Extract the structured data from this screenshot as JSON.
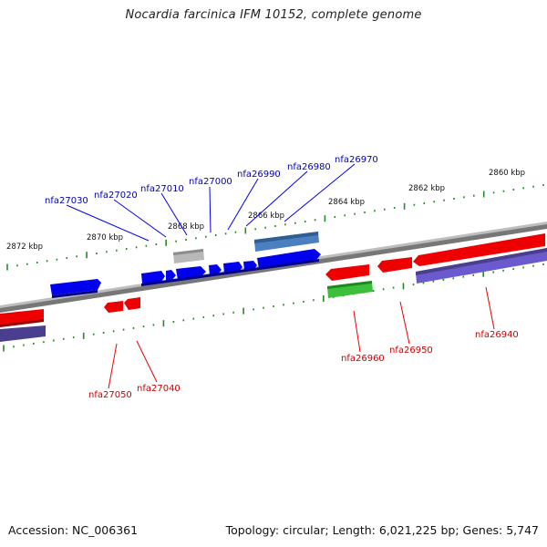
{
  "title": "Nocardia farcinica IFM 10152, complete genome",
  "footer": {
    "accession": "Accession: NC_006361",
    "summary": "Topology: circular; Length: 6,021,225 bp; Genes: 5,747"
  },
  "colors": {
    "forward": "#0000ee",
    "reverse": "#ee0000",
    "rrna": "#3cc03c",
    "pseudo": "#b8b8b8",
    "cds_band_top": "#3a6fb0",
    "cds_band_bottom": "#4a3f8e",
    "cds_band_bottom_light": "#6a5acd",
    "ticks": "#228b22",
    "label_top": "#0000bb",
    "label_bottom": "#cc0000"
  },
  "ruler": {
    "unit": "kbp",
    "top_labels": [
      "2872 kbp",
      "2870 kbp",
      "2868 kbp",
      "2866 kbp",
      "2864 kbp",
      "2862 kbp",
      "2860 kbp"
    ]
  },
  "genes": {
    "top": [
      "nfa27030",
      "nfa27020",
      "nfa27010",
      "nfa27000",
      "nfa26990",
      "nfa26980",
      "nfa26970"
    ],
    "bottom": [
      "nfa27050",
      "nfa27040",
      "nfa26960",
      "nfa26950",
      "nfa26940"
    ]
  }
}
